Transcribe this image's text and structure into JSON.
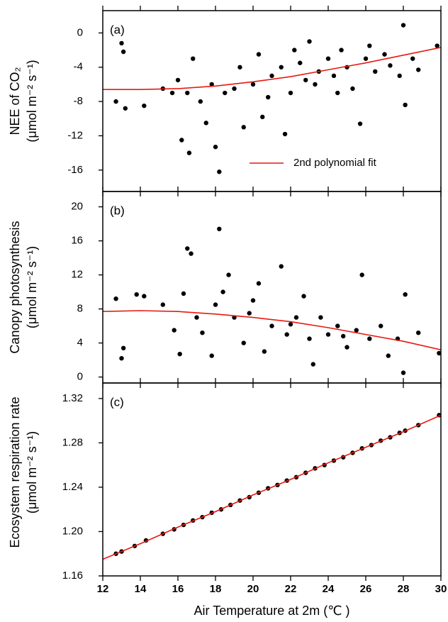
{
  "chart_data": [
    {
      "type": "scatter",
      "panel_label": "(a)",
      "ylabel": [
        "NEE of CO₂",
        "(μmol m⁻² s⁻¹)"
      ],
      "xlim": [
        12,
        30
      ],
      "xticks": [
        12,
        14,
        16,
        18,
        20,
        22,
        24,
        26,
        28,
        30
      ],
      "ylim": [
        -18.5,
        2.6
      ],
      "yticks": [
        0,
        -4,
        -8,
        -12,
        -16
      ],
      "legend": "lower right",
      "series": [
        {
          "kind": "points",
          "color": "#000000",
          "x": [
            12.7,
            13,
            13.1,
            13.2,
            14.2,
            15.2,
            15.7,
            16,
            16.2,
            16.5,
            16.6,
            16.8,
            17.2,
            17.5,
            17.8,
            18,
            18.2,
            18.5,
            19,
            19.5,
            20,
            20.3,
            20.5,
            21,
            21.5,
            21.7,
            22,
            22.5,
            22.8,
            23,
            23.3,
            23.5,
            24,
            24.3,
            24.7,
            25,
            25.3,
            25.7,
            26,
            26.5,
            27,
            27.3,
            27.8,
            28,
            28.1,
            28.5,
            28.8,
            29.8,
            19.3,
            20.8,
            22.2,
            24.5,
            26.2
          ],
          "values": [
            -8,
            -1.2,
            -2.2,
            -8.8,
            -8.5,
            -6.5,
            -7,
            -5.5,
            -12.5,
            -7,
            -14,
            -3,
            -8,
            -10.5,
            -6,
            -13.3,
            -16.2,
            -7,
            -6.5,
            -11,
            -6,
            -2.5,
            -9.8,
            -5,
            -4,
            -11.8,
            -7,
            -3.5,
            -5.5,
            -1,
            -6,
            -4.5,
            -3,
            -5,
            -2,
            -4,
            -6.5,
            -10.6,
            -3,
            -4.5,
            -2.5,
            -3.8,
            -5,
            0.9,
            -8.4,
            -3,
            -4.3,
            -1.5,
            -4,
            -7.5,
            -2,
            -7,
            -1.5
          ]
        },
        {
          "kind": "fit",
          "name": "2nd polynomial fit",
          "color": "#e8190f",
          "x": [
            12,
            14,
            16,
            18,
            20,
            22,
            24,
            26,
            28,
            30
          ],
          "values": [
            -6.6,
            -6.6,
            -6.5,
            -6.2,
            -5.7,
            -5.1,
            -4.3,
            -3.5,
            -2.6,
            -1.7
          ]
        }
      ]
    },
    {
      "type": "scatter",
      "panel_label": "(b)",
      "ylabel": [
        "Canopy photosynthesis",
        "(μmol m⁻² s⁻¹)"
      ],
      "xlim": [
        12,
        30
      ],
      "xticks": [
        12,
        14,
        16,
        18,
        20,
        22,
        24,
        26,
        28,
        30
      ],
      "ylim": [
        -0.7,
        21.8
      ],
      "yticks": [
        0,
        4,
        8,
        12,
        16,
        20
      ],
      "series": [
        {
          "kind": "points",
          "color": "#000000",
          "x": [
            12.7,
            13,
            13.1,
            13.8,
            14.2,
            15.2,
            15.8,
            16.1,
            16.3,
            16.5,
            16.7,
            17,
            17.8,
            18,
            18.2,
            18.4,
            18.7,
            19,
            19.5,
            20,
            20.3,
            20.6,
            21,
            21.5,
            21.8,
            22.3,
            22.7,
            23,
            23.2,
            23.6,
            24,
            24.5,
            25,
            25.5,
            25.8,
            26.2,
            26.8,
            27.2,
            27.7,
            28,
            28.1,
            28.8,
            29.9,
            19.8,
            22,
            24.8,
            17.3
          ],
          "values": [
            9.2,
            2.2,
            3.4,
            9.7,
            9.5,
            8.5,
            5.5,
            2.7,
            9.8,
            15.1,
            14.5,
            7,
            2.5,
            8.5,
            17.4,
            10,
            12,
            7,
            4,
            9,
            11,
            3,
            6,
            13,
            5,
            7,
            9.5,
            4.5,
            1.5,
            7,
            5,
            6,
            3.5,
            5.5,
            12,
            4.5,
            6,
            2.5,
            4.5,
            0.5,
            9.7,
            5.2,
            2.8,
            7.5,
            6.2,
            4.8,
            5.2
          ]
        },
        {
          "kind": "fit",
          "color": "#e8190f",
          "x": [
            12,
            14,
            16,
            18,
            20,
            22,
            24,
            26,
            28,
            30
          ],
          "values": [
            7.7,
            7.8,
            7.7,
            7.4,
            7.0,
            6.5,
            5.8,
            5.0,
            4.2,
            3.2
          ]
        }
      ]
    },
    {
      "type": "scatter",
      "panel_label": "(c)",
      "ylabel": [
        "Ecosystem respiration rate",
        "(μmol m⁻² s⁻¹)"
      ],
      "xlabel": "Air Temperature at 2m (℃ )",
      "xlim": [
        12,
        30
      ],
      "xticks": [
        12,
        14,
        16,
        18,
        20,
        22,
        24,
        26,
        28,
        30
      ],
      "ylim": [
        1.16,
        1.334
      ],
      "yticks": [
        1.16,
        {
          "value": 1.2,
          "label": "1.20"
        },
        1.24,
        1.28,
        1.32
      ],
      "series": [
        {
          "kind": "points",
          "color": "#000000",
          "x": [
            12.7,
            13,
            13.7,
            14.3,
            15.2,
            15.8,
            16.3,
            16.8,
            17.3,
            17.8,
            18.3,
            18.8,
            19.3,
            19.8,
            20.3,
            20.8,
            21.3,
            21.8,
            22.3,
            22.8,
            23.3,
            23.8,
            24.3,
            24.8,
            25.3,
            25.8,
            26.3,
            26.8,
            27.3,
            27.8,
            28.1,
            28.8,
            29.9
          ],
          "values": [
            1.18,
            1.182,
            1.187,
            1.192,
            1.198,
            1.202,
            1.206,
            1.21,
            1.213,
            1.217,
            1.22,
            1.224,
            1.228,
            1.231,
            1.235,
            1.239,
            1.242,
            1.246,
            1.249,
            1.253,
            1.257,
            1.26,
            1.264,
            1.267,
            1.271,
            1.275,
            1.278,
            1.282,
            1.285,
            1.289,
            1.291,
            1.296,
            1.305
          ]
        },
        {
          "kind": "fit",
          "color": "#e8190f",
          "x": [
            12,
            14,
            16,
            18,
            20,
            22,
            24,
            26,
            28,
            30
          ],
          "values": [
            1.175,
            1.189,
            1.204,
            1.218,
            1.233,
            1.247,
            1.262,
            1.276,
            1.29,
            1.305
          ]
        }
      ]
    }
  ]
}
